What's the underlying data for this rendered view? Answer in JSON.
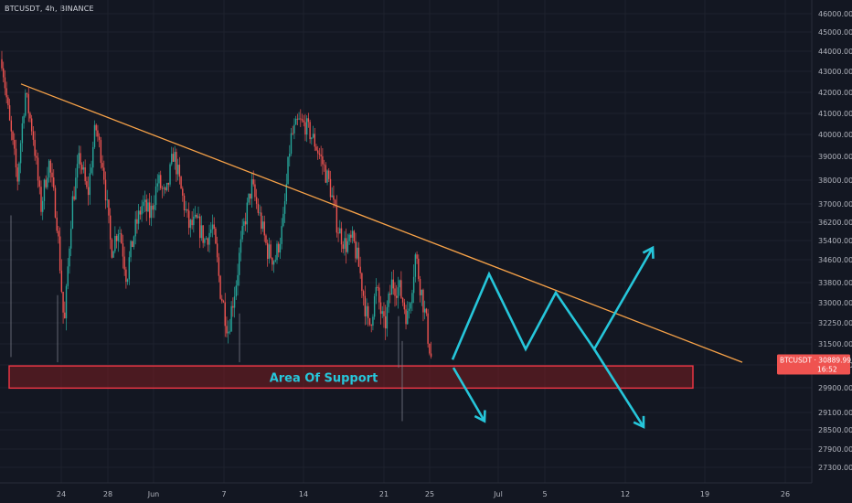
{
  "header": {
    "symbol": "BTCUSDT",
    "interval": "4h",
    "exchange": "BINANCE"
  },
  "price_tag": {
    "symbol": "BTCUSDT",
    "price": "30889.99",
    "countdown": "16:52",
    "color": "#ef5350"
  },
  "colors": {
    "background": "#131722",
    "up": "#26a69a",
    "down": "#ef5350",
    "trendline": "#f7a248",
    "arrows": "#26c6da",
    "support_fill": "#7a1d20",
    "support_border": "#f23645"
  },
  "chart_data": {
    "type": "candlestick",
    "symbol": "BTCUSDT",
    "interval": "4h",
    "exchange": "BINANCE",
    "y_axis": {
      "position": "right",
      "range": [
        26900,
        46300
      ],
      "ticks": [
        "46000.00",
        "45000.00",
        "44000.00",
        "43000.00",
        "42000.00",
        "41000.00",
        "40000.00",
        "39000.00",
        "38000.00",
        "37000.00",
        "36200.00",
        "35400.00",
        "34600.00",
        "33800.00",
        "33000.00",
        "32250.00",
        "31500.00",
        "30700.00",
        "29900.00",
        "29100.00",
        "28500.00",
        "27900.00",
        "27300.00"
      ]
    },
    "x_axis": {
      "ticks": [
        "24",
        "28",
        "Jun",
        "7",
        "14",
        "21",
        "25",
        "Jul",
        "5",
        "12",
        "19",
        "26"
      ]
    },
    "price_path": [
      {
        "d": 0,
        "p": 43600
      },
      {
        "d": 1,
        "p": 40500
      },
      {
        "d": 2,
        "p": 38000
      },
      {
        "d": 3,
        "p": 42000
      },
      {
        "d": 4,
        "p": 40000
      },
      {
        "d": 5,
        "p": 36800
      },
      {
        "d": 6,
        "p": 38800
      },
      {
        "d": 7,
        "p": 36500
      },
      {
        "d": 8,
        "p": 32000
      },
      {
        "d": 9,
        "p": 37000
      },
      {
        "d": 10,
        "p": 39000
      },
      {
        "d": 11,
        "p": 37300
      },
      {
        "d": 12,
        "p": 40400
      },
      {
        "d": 13,
        "p": 38600
      },
      {
        "d": 14,
        "p": 35000
      },
      {
        "d": 15,
        "p": 36000
      },
      {
        "d": 16,
        "p": 34000
      },
      {
        "d": 17,
        "p": 35800
      },
      {
        "d": 18,
        "p": 37000
      },
      {
        "d": 19,
        "p": 36500
      },
      {
        "d": 20,
        "p": 38000
      },
      {
        "d": 21,
        "p": 37200
      },
      {
        "d": 22,
        "p": 39200
      },
      {
        "d": 23,
        "p": 37500
      },
      {
        "d": 24,
        "p": 36000
      },
      {
        "d": 25,
        "p": 36200
      },
      {
        "d": 26,
        "p": 35400
      },
      {
        "d": 27,
        "p": 36000
      },
      {
        "d": 28,
        "p": 33500
      },
      {
        "d": 29,
        "p": 32000
      },
      {
        "d": 30,
        "p": 33800
      },
      {
        "d": 31,
        "p": 36000
      },
      {
        "d": 32,
        "p": 37800
      },
      {
        "d": 33,
        "p": 36500
      },
      {
        "d": 34,
        "p": 35000
      },
      {
        "d": 35,
        "p": 34600
      },
      {
        "d": 36,
        "p": 36000
      },
      {
        "d": 37,
        "p": 39800
      },
      {
        "d": 38,
        "p": 40600
      },
      {
        "d": 39,
        "p": 40400
      },
      {
        "d": 40,
        "p": 39700
      },
      {
        "d": 41,
        "p": 38800
      },
      {
        "d": 42,
        "p": 37800
      },
      {
        "d": 43,
        "p": 36000
      },
      {
        "d": 44,
        "p": 35200
      },
      {
        "d": 45,
        "p": 35400
      },
      {
        "d": 46,
        "p": 34000
      },
      {
        "d": 47,
        "p": 32000
      },
      {
        "d": 48,
        "p": 33500
      },
      {
        "d": 49,
        "p": 32000
      },
      {
        "d": 50,
        "p": 33800
      },
      {
        "d": 51,
        "p": 33500
      },
      {
        "d": 52,
        "p": 32400
      },
      {
        "d": 53,
        "p": 34800
      },
      {
        "d": 54,
        "p": 33000
      },
      {
        "d": 55,
        "p": 31000
      }
    ],
    "trendline": {
      "from": {
        "d": 3,
        "p": 42400
      },
      "to": {
        "d": 107,
        "p": 30800
      }
    },
    "support_zone": {
      "from_d": -0.5,
      "to_d": 104,
      "top": 30800,
      "bottom": 29800,
      "label": "Area Of Support"
    },
    "projection_up": [
      {
        "d": 56,
        "p": 30900
      },
      {
        "d": 66,
        "p": 34100
      },
      {
        "d": 77,
        "p": 31300
      },
      {
        "d": 86,
        "p": 33400
      },
      {
        "d": 96,
        "p": 31300
      },
      {
        "d": 108,
        "p": 35100
      }
    ],
    "projection_down_1": [
      {
        "d": 56,
        "p": 30600
      },
      {
        "d": 71,
        "p": 28800
      }
    ],
    "projection_down_2": [
      {
        "d": 96,
        "p": 31300
      },
      {
        "d": 108,
        "p": 28600
      }
    ]
  }
}
